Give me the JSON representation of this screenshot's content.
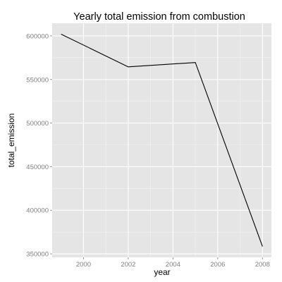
{
  "colors": {
    "panel_background": "#e5e5e5",
    "major_grid": "#ffffff",
    "minor_grid": "#f2f2f2",
    "line": "#000000",
    "tick_label": "#7f7f7f"
  },
  "chart_data": {
    "type": "line",
    "title": "Yearly total emission from combustion",
    "xlabel": "year",
    "ylabel": "total_emission",
    "x": [
      1999,
      2002,
      2005,
      2008
    ],
    "series": [
      {
        "values": [
          602000,
          564500,
          569500,
          358500
        ]
      }
    ],
    "xlim": [
      1998.6,
      2008.4
    ],
    "ylim": [
      346000,
      614500
    ],
    "xticks": [
      2000,
      2002,
      2004,
      2006,
      2008
    ],
    "xtick_labels": [
      "2000",
      "2002",
      "2004",
      "2006",
      "2008"
    ],
    "yticks": [
      350000,
      400000,
      450000,
      500000,
      550000,
      600000
    ],
    "ytick_labels": [
      "350000",
      "400000",
      "450000",
      "500000",
      "550000",
      "600000"
    ],
    "grid": true,
    "legend": "none"
  }
}
